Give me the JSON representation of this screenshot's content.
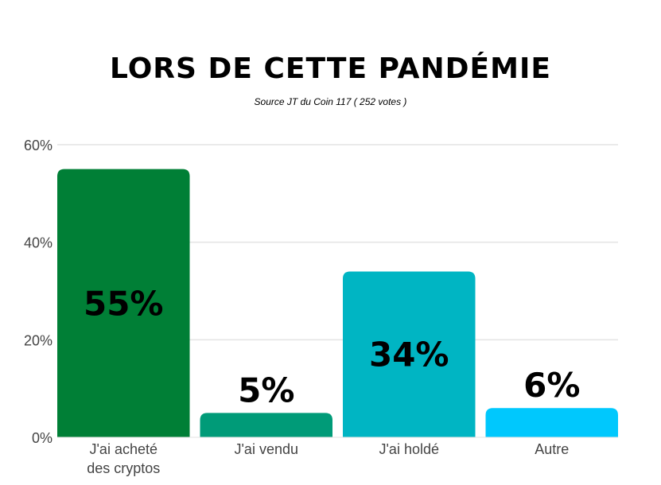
{
  "chart_data": {
    "type": "bar",
    "title": "LORS DE CETTE PANDÉMIE",
    "subtitle": "Source JT du Coin 117 ( 252 votes )",
    "categories": [
      [
        "J'ai acheté",
        "des cryptos"
      ],
      [
        "J'ai vendu"
      ],
      [
        "J'ai holdé"
      ],
      [
        "Autre"
      ]
    ],
    "values": [
      55,
      5,
      34,
      6
    ],
    "data_labels": [
      "55%",
      "5%",
      "34%",
      "6%"
    ],
    "colors": [
      "#007f36",
      "#009b78",
      "#00b5c3",
      "#00c8fd"
    ],
    "ylim": [
      0,
      60
    ],
    "yticks": [
      0,
      20,
      40,
      60
    ],
    "ytick_labels": [
      "0%",
      "20%",
      "40%",
      "60%"
    ],
    "xlabel": "",
    "ylabel": "",
    "grid": true,
    "legend": "none"
  }
}
